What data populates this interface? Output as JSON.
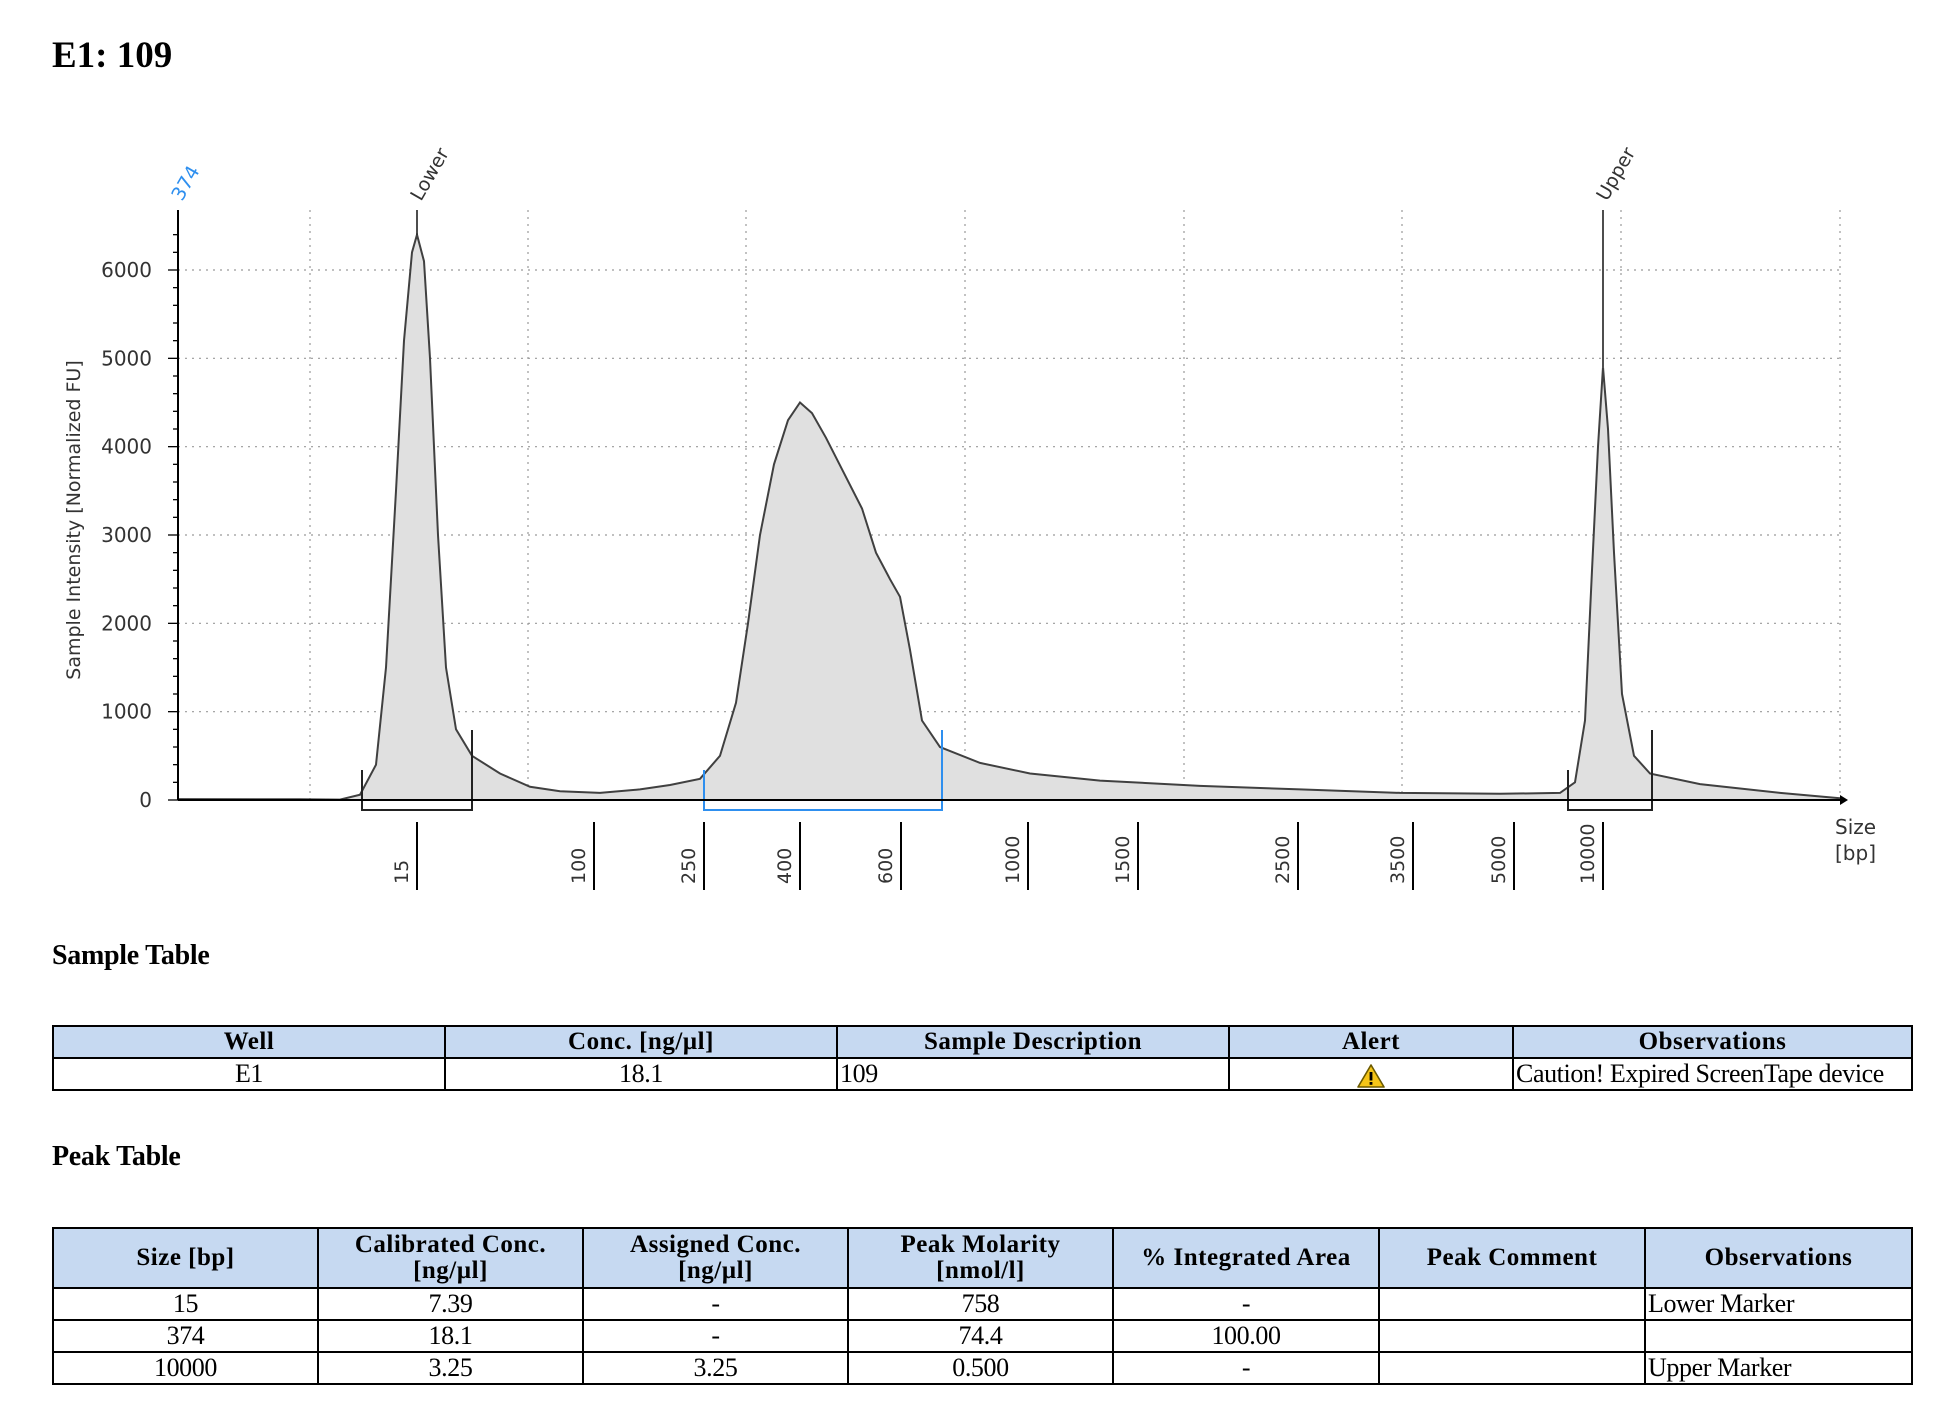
{
  "page_title": "E1: 109",
  "chart_data": {
    "type": "area",
    "ylabel": "Sample Intensity [Normalized FU]",
    "xlabel": "Size\n[bp]",
    "xlabel_lines": [
      "Size",
      "[bp]"
    ],
    "yticks": [
      0,
      1000,
      2000,
      3000,
      4000,
      5000,
      6000
    ],
    "ylim": [
      0,
      6600
    ],
    "xticks": [
      "15",
      "100",
      "250",
      "400",
      "600",
      "1000",
      "1500",
      "2500",
      "3500",
      "5000",
      "10000"
    ],
    "grid": true,
    "peaks": [
      {
        "label": "Lower",
        "size": 15,
        "height": 6400
      },
      {
        "label": "374",
        "size": 374,
        "height": 4500
      },
      {
        "label": "Upper",
        "size": 10000,
        "height": 4900
      }
    ],
    "colors": {
      "fill": "#e0e0e0",
      "line": "#404040",
      "highlight": "#2e8fef"
    }
  },
  "sample_section": {
    "title": "Sample Table",
    "headers": [
      "Well",
      "Conc. [ng/µl]",
      "Sample Description",
      "Alert",
      "Observations"
    ],
    "rows": [
      {
        "well": "E1",
        "conc": "18.1",
        "description": "109",
        "alert_icon": "warning-icon",
        "observations": "Caution! Expired ScreenTape device"
      }
    ]
  },
  "peak_section": {
    "title": "Peak Table",
    "headers": [
      {
        "line1": "Size [bp]",
        "line2": ""
      },
      {
        "line1": "Calibrated Conc.",
        "line2": "[ng/µl]"
      },
      {
        "line1": "Assigned Conc.",
        "line2": "[ng/µl]"
      },
      {
        "line1": "Peak Molarity",
        "line2": "[nmol/l]"
      },
      {
        "line1": "% Integrated Area",
        "line2": ""
      },
      {
        "line1": "Peak Comment",
        "line2": ""
      },
      {
        "line1": "Observations",
        "line2": ""
      }
    ],
    "rows": [
      {
        "size": "15",
        "calibrated": "7.39",
        "assigned": "-",
        "molarity": "758",
        "area": "-",
        "comment": "",
        "observations": "Lower Marker"
      },
      {
        "size": "374",
        "calibrated": "18.1",
        "assigned": "-",
        "molarity": "74.4",
        "area": "100.00",
        "comment": "",
        "observations": ""
      },
      {
        "size": "10000",
        "calibrated": "3.25",
        "assigned": "3.25",
        "molarity": "0.500",
        "area": "-",
        "comment": "",
        "observations": "Upper Marker"
      }
    ]
  }
}
